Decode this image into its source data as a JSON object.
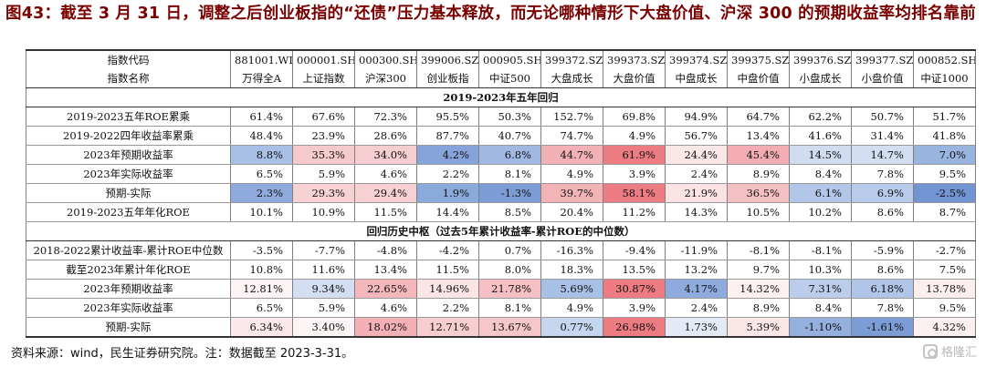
{
  "title": "图43：截至 3 月 31 日，调整之后创业板指的“还债”压力基本释放，而无论哪种情形下大盘价值、沪深 300 的预期收益率均排名靠前",
  "header": {
    "code_label": "指数代码",
    "name_label": "指数名称",
    "codes": [
      "881001.WI",
      "000001.SH",
      "000300.SH",
      "399006.SZ",
      "000905.SH",
      "399372.SZ",
      "399373.SZ",
      "399374.SZ",
      "399375.SZ",
      "399376.SZ",
      "399377.SZ",
      "000852.SH"
    ],
    "names": [
      "万得全A",
      "上证指数",
      "沪深300",
      "创业板指",
      "中证500",
      "大盘成长",
      "大盘价值",
      "中盘成长",
      "中盘价值",
      "小盘成长",
      "小盘价值",
      "中证1000"
    ]
  },
  "sections": [
    {
      "title": "2019-2023年五年回归",
      "rows": [
        {
          "label": "2019-2023五年ROE累乘",
          "values": [
            "61.4%",
            "67.6%",
            "72.3%",
            "95.5%",
            "50.3%",
            "152.7%",
            "69.8%",
            "94.9%",
            "64.7%",
            "62.2%",
            "50.7%",
            "51.7%"
          ],
          "colors": []
        },
        {
          "label": "2019-2022四年收益率累乘",
          "values": [
            "48.4%",
            "23.9%",
            "28.6%",
            "87.7%",
            "40.7%",
            "74.7%",
            "4.9%",
            "56.7%",
            "13.4%",
            "41.6%",
            "31.4%",
            "41.8%"
          ],
          "colors": []
        },
        {
          "label": "2023年预期收益率",
          "values": [
            "8.8%",
            "35.3%",
            "34.0%",
            "4.2%",
            "6.8%",
            "44.7%",
            "61.9%",
            "24.4%",
            "45.4%",
            "14.5%",
            "14.7%",
            "7.0%"
          ],
          "colors": [
            "#a9c0e6",
            "#f6c9cc",
            "#f6cdd0",
            "#86a3da",
            "#a0b8e2",
            "#f3b1b5",
            "#ec7b82",
            "#fbe6e8",
            "#f3adb2",
            "#d0dcf0",
            "#d2def1",
            "#9ab4e0"
          ]
        },
        {
          "label": "2023年实际收益率",
          "values": [
            "6.5%",
            "5.9%",
            "4.6%",
            "2.2%",
            "8.1%",
            "4.9%",
            "3.9%",
            "2.4%",
            "8.9%",
            "8.4%",
            "7.8%",
            "9.5%"
          ],
          "colors": []
        },
        {
          "label": "预期-实际",
          "values": [
            "2.3%",
            "29.3%",
            "29.4%",
            "1.9%",
            "-1.3%",
            "39.7%",
            "58.1%",
            "21.9%",
            "36.5%",
            "6.1%",
            "6.9%",
            "-2.5%"
          ],
          "colors": [
            "#8fabdd",
            "#f7d1d4",
            "#f7d0d3",
            "#8baadc",
            "#7c9cd6",
            "#f3b4b8",
            "#ec7b82",
            "#fbe2e4",
            "#f5c0c4",
            "#b1c6e8",
            "#b8cbea",
            "#7294d3"
          ]
        },
        {
          "label": "2019-2023五年年化ROE",
          "values": [
            "10.1%",
            "10.9%",
            "11.5%",
            "14.4%",
            "8.5%",
            "20.4%",
            "11.2%",
            "14.3%",
            "10.5%",
            "10.2%",
            "8.6%",
            "8.7%"
          ],
          "colors": []
        }
      ]
    },
    {
      "title": "回归历史中枢（过去5年累计收益率-累计ROE的中位数）",
      "rows": [
        {
          "label": "2018-2022累计收益率-累计ROE中位数",
          "values": [
            "-3.5%",
            "-7.7%",
            "-4.8%",
            "-4.2%",
            "0.7%",
            "-16.3%",
            "-9.4%",
            "-11.9%",
            "-8.1%",
            "-8.1%",
            "-5.9%",
            "-2.7%"
          ],
          "colors": []
        },
        {
          "label": "截至2023年累计年化ROE",
          "values": [
            "10.8%",
            "11.6%",
            "13.4%",
            "11.5%",
            "8.0%",
            "18.3%",
            "13.5%",
            "13.2%",
            "9.7%",
            "10.3%",
            "8.6%",
            "7.5%"
          ],
          "colors": []
        },
        {
          "label": "2023年预期收益率",
          "values": [
            "12.81%",
            "9.34%",
            "22.65%",
            "14.96%",
            "21.78%",
            "5.69%",
            "30.87%",
            "4.17%",
            "14.32%",
            "7.31%",
            "6.18%",
            "13.78%"
          ],
          "colors": [
            "#fdf3f4",
            "#d3def2",
            "#f4b8bc",
            "#fbe4e6",
            "#f5bfc3",
            "#a9c0e6",
            "#ec7b82",
            "#8fabdd",
            "#fdf0f1",
            "#bccdeb",
            "#b0c5e8",
            "#fceeef"
          ]
        },
        {
          "label": "2023年实际收益率",
          "values": [
            "6.5%",
            "5.9%",
            "4.6%",
            "2.2%",
            "8.1%",
            "4.9%",
            "3.9%",
            "2.4%",
            "8.9%",
            "8.4%",
            "7.8%",
            "9.5%"
          ],
          "colors": []
        },
        {
          "label": "预期-实际",
          "values": [
            "6.34%",
            "3.40%",
            "18.02%",
            "12.71%",
            "13.67%",
            "0.77%",
            "26.98%",
            "1.73%",
            "5.39%",
            "-1.10%",
            "-1.61%",
            "4.32%"
          ],
          "colors": [
            "#fbe8ea",
            "#fdf4f5",
            "#f3b0b5",
            "#f7cdd0",
            "#f6c7ca",
            "#c7d6ef",
            "#ec7b82",
            "#e3eaf6",
            "#fbe6e8",
            "#95afde",
            "#7c9cd6",
            "#fdf0f1"
          ]
        }
      ]
    }
  ],
  "footer": {
    "source": "资料来源：wind，民生证券研究院。注：数据截至 2023-3-31。",
    "watermark": "格隆汇"
  }
}
